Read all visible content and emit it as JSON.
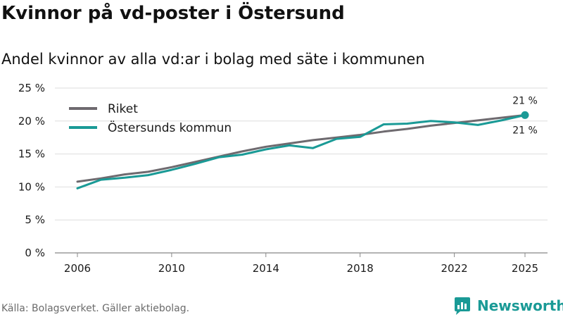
{
  "header": {
    "title": "Kvinnor på vd-poster i Östersund",
    "subtitle": "Andel kvinnor av alla vd:ar i bolag med säte i kommunen"
  },
  "footer": {
    "source": "Källa: Bolagsverket. Gäller aktiebolag.",
    "brand": "Newsworthy"
  },
  "colors": {
    "riket": "#6e6a6f",
    "ostersund": "#1a9a96",
    "grid": "#dedede",
    "text": "#1a1a1a"
  },
  "chart_data": {
    "type": "line",
    "title": "Kvinnor på vd-poster i Östersund",
    "subtitle": "Andel kvinnor av alla vd:ar i bolag med säte i kommunen",
    "xlabel": "",
    "ylabel": "",
    "x": [
      2006,
      2007,
      2008,
      2009,
      2010,
      2011,
      2012,
      2013,
      2014,
      2015,
      2016,
      2017,
      2018,
      2019,
      2020,
      2021,
      2022,
      2023,
      2024,
      2025
    ],
    "xlim": [
      2006,
      2025
    ],
    "ylim": [
      0,
      25
    ],
    "x_ticks": [
      2006,
      2010,
      2014,
      2018,
      2022,
      2025
    ],
    "y_ticks": [
      0,
      5,
      10,
      15,
      20,
      25
    ],
    "y_tick_labels": [
      "0 %",
      "5 %",
      "10 %",
      "15 %",
      "20 %",
      "25 %"
    ],
    "grid": true,
    "legend_position": "top-left",
    "series": [
      {
        "name": "Riket",
        "key": "riket",
        "values": [
          10.8,
          11.3,
          11.9,
          12.3,
          13.0,
          13.8,
          14.6,
          15.4,
          16.1,
          16.6,
          17.1,
          17.5,
          17.9,
          18.4,
          18.8,
          19.3,
          19.7,
          20.1,
          20.5,
          20.9
        ]
      },
      {
        "name": "Östersunds kommun",
        "key": "ostersund",
        "values": [
          9.8,
          11.1,
          11.4,
          11.8,
          12.6,
          13.5,
          14.5,
          14.9,
          15.7,
          16.3,
          15.9,
          17.3,
          17.6,
          19.5,
          19.6,
          20.0,
          19.8,
          19.4,
          20.1,
          20.9
        ]
      }
    ],
    "end_labels": [
      {
        "series": "Riket",
        "text": "21 %",
        "position": "above"
      },
      {
        "series": "Östersunds kommun",
        "text": "21 %",
        "position": "below"
      }
    ]
  }
}
